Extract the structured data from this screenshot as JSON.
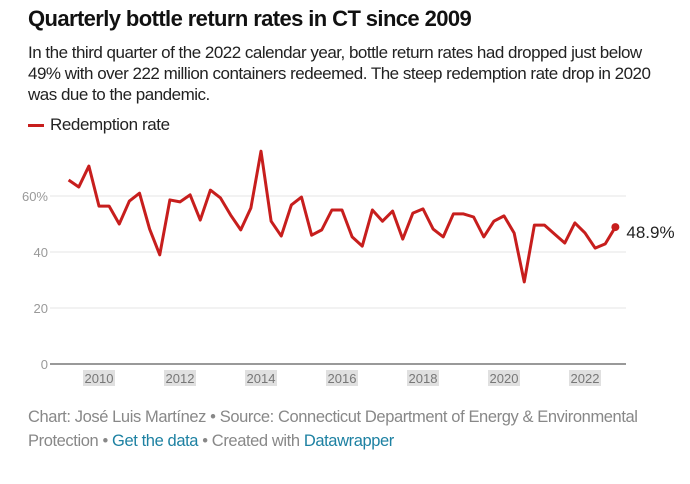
{
  "title": "Quarterly bottle return rates in CT since 2009",
  "subtitle": "In the third quarter of the 2022 calendar year, bottle return rates had dropped just below 49% with over 222 million containers redeemed. The steep redemption rate drop in 2020 was due to the pandemic.",
  "footer": {
    "prefix": "Chart: José Luis Martínez • Source: Connecticut Department of Energy & Environmental Protection • ",
    "get_data": "Get the data",
    "mid": " • Created with ",
    "datawrapper": "Datawrapper"
  },
  "colors": {
    "line": "#c71e1d",
    "link": "#1d81a2",
    "grid": "#e6e6e6",
    "axis": "#333333"
  },
  "chart_data": {
    "type": "line",
    "title": "Quarterly bottle return rates in CT since 2009",
    "xlabel": "",
    "ylabel": "",
    "ylim": [
      0,
      78
    ],
    "yticks": [
      0,
      20,
      40,
      60
    ],
    "ytick_labels": [
      "0",
      "20",
      "40",
      "60%"
    ],
    "xticks": [
      2010,
      2012,
      2014,
      2016,
      2018,
      2020,
      2022
    ],
    "xtick_labels": [
      "2010",
      "2012",
      "2014",
      "2016",
      "2018",
      "2020",
      "2022"
    ],
    "grid": true,
    "legend": "top-left",
    "end_label": "48.9%",
    "x": [
      "2009 Q1",
      "2009 Q2",
      "2009 Q3",
      "2009 Q4",
      "2010 Q1",
      "2010 Q2",
      "2010 Q3",
      "2010 Q4",
      "2011 Q1",
      "2011 Q2",
      "2011 Q3",
      "2011 Q4",
      "2012 Q1",
      "2012 Q2",
      "2012 Q3",
      "2012 Q4",
      "2013 Q1",
      "2013 Q2",
      "2013 Q3",
      "2013 Q4",
      "2014 Q1",
      "2014 Q2",
      "2014 Q3",
      "2014 Q4",
      "2015 Q1",
      "2015 Q2",
      "2015 Q3",
      "2015 Q4",
      "2016 Q1",
      "2016 Q2",
      "2016 Q3",
      "2016 Q4",
      "2017 Q1",
      "2017 Q2",
      "2017 Q3",
      "2017 Q4",
      "2018 Q1",
      "2018 Q2",
      "2018 Q3",
      "2018 Q4",
      "2019 Q1",
      "2019 Q2",
      "2019 Q3",
      "2019 Q4",
      "2020 Q1",
      "2020 Q2",
      "2020 Q3",
      "2020 Q4",
      "2021 Q1",
      "2021 Q2",
      "2021 Q3",
      "2021 Q4",
      "2022 Q1",
      "2022 Q2",
      "2022 Q3"
    ],
    "series": [
      {
        "name": "Redemption rate",
        "values": [
          65.7,
          63.2,
          70.7,
          56.4,
          56.4,
          50.0,
          58.2,
          61.0,
          48.2,
          39.0,
          58.6,
          57.9,
          60.4,
          51.4,
          62.1,
          59.3,
          53.2,
          47.9,
          55.7,
          76.0,
          51.0,
          45.7,
          56.8,
          59.6,
          46.0,
          47.9,
          55.0,
          55.0,
          45.4,
          42.1,
          55.0,
          51.0,
          54.6,
          44.6,
          53.9,
          55.4,
          48.2,
          45.4,
          53.6,
          53.6,
          52.5,
          45.4,
          51.0,
          52.9,
          46.8,
          29.3,
          49.6,
          49.6,
          46.4,
          43.2,
          50.4,
          46.8,
          41.4,
          42.9,
          48.9
        ]
      }
    ]
  }
}
